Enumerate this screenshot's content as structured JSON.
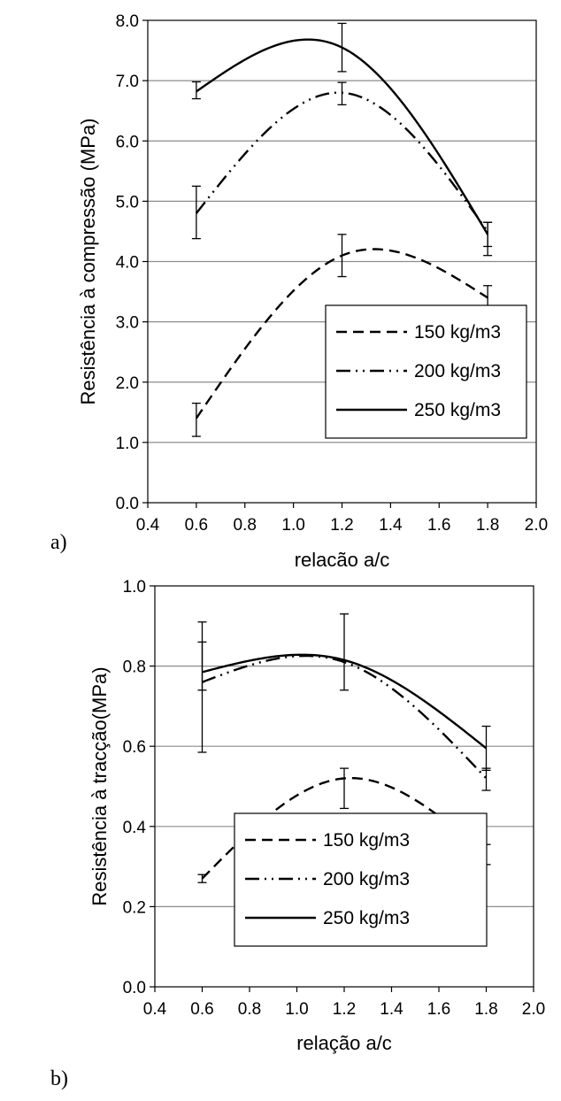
{
  "chart_data": [
    {
      "panel": "a)",
      "type": "line",
      "xlabel": "relação a/c",
      "ylabel": "Resistência à compressão (MPa)",
      "xlim": [
        0.4,
        2.0
      ],
      "ylim": [
        0.0,
        8.0
      ],
      "xticks": [
        "0.4",
        "0.6",
        "0.8",
        "1.0",
        "1.2",
        "1.4",
        "1.6",
        "1.8",
        "2.0"
      ],
      "yticks": [
        "0.0",
        "1.0",
        "2.0",
        "3.0",
        "4.0",
        "5.0",
        "6.0",
        "7.0",
        "8.0"
      ],
      "grid": "horizontal",
      "legend_position": "bottom-right",
      "x": [
        0.6,
        1.2,
        1.8
      ],
      "series": [
        {
          "name": "150 kg/m3",
          "style": "dashed",
          "values": [
            1.4,
            4.1,
            3.4
          ],
          "err_low": [
            1.1,
            3.75,
            3.2
          ],
          "err_high": [
            1.65,
            4.45,
            3.6
          ]
        },
        {
          "name": "200 kg/m3",
          "style": "dash-dot-dot",
          "values": [
            4.8,
            6.8,
            4.5
          ],
          "err_low": [
            4.38,
            6.6,
            4.1
          ],
          "err_high": [
            5.25,
            6.97,
            4.65
          ]
        },
        {
          "name": "250 kg/m3",
          "style": "solid",
          "values": [
            6.82,
            7.55,
            4.45
          ],
          "err_low": [
            6.7,
            7.15,
            4.25
          ],
          "err_high": [
            6.98,
            7.95,
            4.65
          ]
        }
      ]
    },
    {
      "panel": "b)",
      "type": "line",
      "xlabel": "relação a/c",
      "ylabel": "Resistência à tracção(MPa)",
      "xlim": [
        0.4,
        2.0
      ],
      "ylim": [
        0.0,
        1.0
      ],
      "xticks": [
        "0.4",
        "0.6",
        "0.8",
        "1.0",
        "1.2",
        "1.4",
        "1.6",
        "1.8",
        "2.0"
      ],
      "yticks": [
        "0.0",
        "0.2",
        "0.4",
        "0.6",
        "0.8",
        "1.0"
      ],
      "grid": "horizontal",
      "legend_position": "bottom-right",
      "x": [
        0.6,
        1.2,
        1.8
      ],
      "series": [
        {
          "name": "150 kg/m3",
          "style": "dashed",
          "values": [
            0.27,
            0.52,
            0.33
          ],
          "err_low": [
            0.26,
            0.445,
            0.305
          ],
          "err_high": [
            0.28,
            0.545,
            0.355
          ]
        },
        {
          "name": "200 kg/m3",
          "style": "dash-dot-dot",
          "values": [
            0.76,
            0.81,
            0.52
          ],
          "err_low": [
            0.74,
            0.81,
            0.49
          ],
          "err_high": [
            0.86,
            0.81,
            0.545
          ]
        },
        {
          "name": "250 kg/m3",
          "style": "solid",
          "values": [
            0.785,
            0.815,
            0.595
          ],
          "err_low": [
            0.585,
            0.74,
            0.54
          ],
          "err_high": [
            0.91,
            0.93,
            0.65
          ]
        }
      ]
    }
  ]
}
